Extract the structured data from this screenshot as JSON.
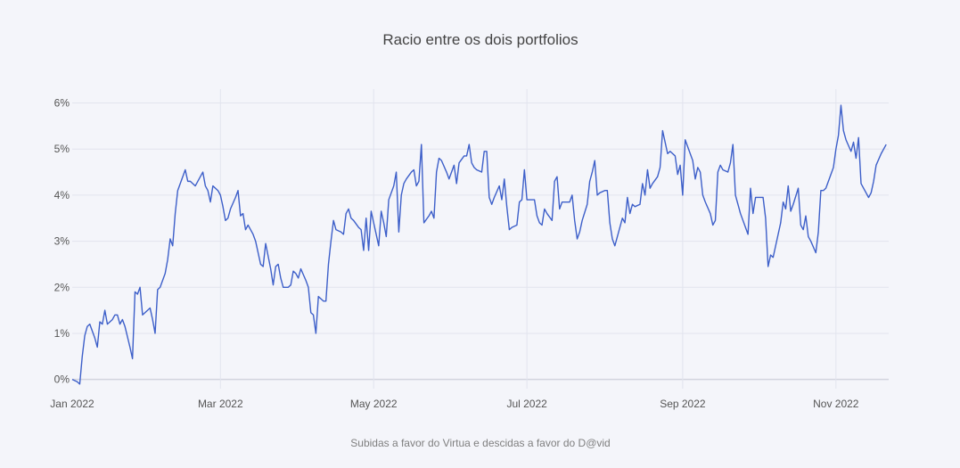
{
  "chart_data": {
    "type": "line",
    "title": "Racio entre os dois portfolios",
    "caption": "Subidas a favor do Virtua e descidas a favor do D@vid",
    "xlabel": "",
    "ylabel": "",
    "x_ticks": [
      {
        "date": "2022-01-01",
        "label": "Jan 2022"
      },
      {
        "date": "2022-03-01",
        "label": "Mar 2022"
      },
      {
        "date": "2022-05-01",
        "label": "May 2022"
      },
      {
        "date": "2022-07-01",
        "label": "Jul 2022"
      },
      {
        "date": "2022-09-01",
        "label": "Sep 2022"
      },
      {
        "date": "2022-11-01",
        "label": "Nov 2022"
      }
    ],
    "y_ticks": [
      {
        "value": 0,
        "label": "0%"
      },
      {
        "value": 1,
        "label": "1%"
      },
      {
        "value": 2,
        "label": "2%"
      },
      {
        "value": 3,
        "label": "3%"
      },
      {
        "value": 4,
        "label": "4%"
      },
      {
        "value": 5,
        "label": "5%"
      },
      {
        "value": 6,
        "label": "6%"
      }
    ],
    "xlim": [
      "2022-01-01",
      "2022-11-22"
    ],
    "ylim": [
      -0.2,
      6.3
    ],
    "grid": true,
    "line_color": "#3d5fc9",
    "series": [
      {
        "name": "",
        "points": [
          [
            "2022-01-01",
            0.0
          ],
          [
            "2022-01-03",
            -0.05
          ],
          [
            "2022-01-04",
            -0.1
          ],
          [
            "2022-01-05",
            0.5
          ],
          [
            "2022-01-06",
            0.95
          ],
          [
            "2022-01-07",
            1.15
          ],
          [
            "2022-01-08",
            1.2
          ],
          [
            "2022-01-10",
            0.9
          ],
          [
            "2022-01-11",
            0.7
          ],
          [
            "2022-01-12",
            1.25
          ],
          [
            "2022-01-13",
            1.2
          ],
          [
            "2022-01-14",
            1.5
          ],
          [
            "2022-01-15",
            1.2
          ],
          [
            "2022-01-17",
            1.3
          ],
          [
            "2022-01-18",
            1.4
          ],
          [
            "2022-01-19",
            1.4
          ],
          [
            "2022-01-20",
            1.2
          ],
          [
            "2022-01-21",
            1.3
          ],
          [
            "2022-01-22",
            1.15
          ],
          [
            "2022-01-24",
            0.7
          ],
          [
            "2022-01-25",
            0.45
          ],
          [
            "2022-01-26",
            1.9
          ],
          [
            "2022-01-27",
            1.85
          ],
          [
            "2022-01-28",
            2.0
          ],
          [
            "2022-01-29",
            1.4
          ],
          [
            "2022-01-31",
            1.5
          ],
          [
            "2022-02-01",
            1.55
          ],
          [
            "2022-02-02",
            1.3
          ],
          [
            "2022-02-03",
            1.0
          ],
          [
            "2022-02-04",
            1.95
          ],
          [
            "2022-02-05",
            2.0
          ],
          [
            "2022-02-07",
            2.3
          ],
          [
            "2022-02-08",
            2.6
          ],
          [
            "2022-02-09",
            3.05
          ],
          [
            "2022-02-10",
            2.9
          ],
          [
            "2022-02-11",
            3.6
          ],
          [
            "2022-02-12",
            4.1
          ],
          [
            "2022-02-14",
            4.4
          ],
          [
            "2022-02-15",
            4.55
          ],
          [
            "2022-02-16",
            4.3
          ],
          [
            "2022-02-17",
            4.3
          ],
          [
            "2022-02-18",
            4.25
          ],
          [
            "2022-02-19",
            4.2
          ],
          [
            "2022-02-21",
            4.4
          ],
          [
            "2022-02-22",
            4.5
          ],
          [
            "2022-02-23",
            4.2
          ],
          [
            "2022-02-24",
            4.1
          ],
          [
            "2022-02-25",
            3.85
          ],
          [
            "2022-02-26",
            4.2
          ],
          [
            "2022-02-28",
            4.1
          ],
          [
            "2022-03-01",
            4.0
          ],
          [
            "2022-03-02",
            3.75
          ],
          [
            "2022-03-03",
            3.45
          ],
          [
            "2022-03-04",
            3.5
          ],
          [
            "2022-03-05",
            3.7
          ],
          [
            "2022-03-07",
            3.95
          ],
          [
            "2022-03-08",
            4.1
          ],
          [
            "2022-03-09",
            3.55
          ],
          [
            "2022-03-10",
            3.6
          ],
          [
            "2022-03-11",
            3.25
          ],
          [
            "2022-03-12",
            3.35
          ],
          [
            "2022-03-14",
            3.15
          ],
          [
            "2022-03-15",
            3.0
          ],
          [
            "2022-03-16",
            2.75
          ],
          [
            "2022-03-17",
            2.5
          ],
          [
            "2022-03-18",
            2.45
          ],
          [
            "2022-03-19",
            2.95
          ],
          [
            "2022-03-21",
            2.4
          ],
          [
            "2022-03-22",
            2.05
          ],
          [
            "2022-03-23",
            2.45
          ],
          [
            "2022-03-24",
            2.5
          ],
          [
            "2022-03-25",
            2.2
          ],
          [
            "2022-03-26",
            2.0
          ],
          [
            "2022-03-28",
            2.0
          ],
          [
            "2022-03-29",
            2.05
          ],
          [
            "2022-03-30",
            2.35
          ],
          [
            "2022-03-31",
            2.3
          ],
          [
            "2022-04-01",
            2.2
          ],
          [
            "2022-04-02",
            2.4
          ],
          [
            "2022-04-04",
            2.15
          ],
          [
            "2022-04-05",
            2.0
          ],
          [
            "2022-04-06",
            1.45
          ],
          [
            "2022-04-07",
            1.4
          ],
          [
            "2022-04-08",
            1.0
          ],
          [
            "2022-04-09",
            1.8
          ],
          [
            "2022-04-11",
            1.7
          ],
          [
            "2022-04-12",
            1.7
          ],
          [
            "2022-04-13",
            2.5
          ],
          [
            "2022-04-14",
            3.0
          ],
          [
            "2022-04-15",
            3.45
          ],
          [
            "2022-04-16",
            3.25
          ],
          [
            "2022-04-18",
            3.2
          ],
          [
            "2022-04-19",
            3.15
          ],
          [
            "2022-04-20",
            3.6
          ],
          [
            "2022-04-21",
            3.7
          ],
          [
            "2022-04-22",
            3.5
          ],
          [
            "2022-04-23",
            3.45
          ],
          [
            "2022-04-25",
            3.3
          ],
          [
            "2022-04-26",
            3.25
          ],
          [
            "2022-04-27",
            2.8
          ],
          [
            "2022-04-28",
            3.5
          ],
          [
            "2022-04-29",
            2.8
          ],
          [
            "2022-04-30",
            3.65
          ],
          [
            "2022-05-02",
            3.15
          ],
          [
            "2022-05-03",
            2.9
          ],
          [
            "2022-05-04",
            3.65
          ],
          [
            "2022-05-05",
            3.4
          ],
          [
            "2022-05-06",
            3.1
          ],
          [
            "2022-05-07",
            3.9
          ],
          [
            "2022-05-09",
            4.2
          ],
          [
            "2022-05-10",
            4.5
          ],
          [
            "2022-05-11",
            3.2
          ],
          [
            "2022-05-12",
            4.0
          ],
          [
            "2022-05-13",
            4.25
          ],
          [
            "2022-05-14",
            4.35
          ],
          [
            "2022-05-16",
            4.5
          ],
          [
            "2022-05-17",
            4.55
          ],
          [
            "2022-05-18",
            4.2
          ],
          [
            "2022-05-19",
            4.3
          ],
          [
            "2022-05-20",
            5.1
          ],
          [
            "2022-05-21",
            3.4
          ],
          [
            "2022-05-23",
            3.55
          ],
          [
            "2022-05-24",
            3.65
          ],
          [
            "2022-05-25",
            3.5
          ],
          [
            "2022-05-26",
            4.5
          ],
          [
            "2022-05-27",
            4.8
          ],
          [
            "2022-05-28",
            4.75
          ],
          [
            "2022-05-30",
            4.5
          ],
          [
            "2022-05-31",
            4.35
          ],
          [
            "2022-06-01",
            4.5
          ],
          [
            "2022-06-02",
            4.65
          ],
          [
            "2022-06-03",
            4.25
          ],
          [
            "2022-06-04",
            4.7
          ],
          [
            "2022-06-06",
            4.85
          ],
          [
            "2022-06-07",
            4.85
          ],
          [
            "2022-06-08",
            5.1
          ],
          [
            "2022-06-09",
            4.7
          ],
          [
            "2022-06-10",
            4.6
          ],
          [
            "2022-06-11",
            4.55
          ],
          [
            "2022-06-13",
            4.5
          ],
          [
            "2022-06-14",
            4.95
          ],
          [
            "2022-06-15",
            4.95
          ],
          [
            "2022-06-16",
            3.95
          ],
          [
            "2022-06-17",
            3.8
          ],
          [
            "2022-06-18",
            3.95
          ],
          [
            "2022-06-20",
            4.2
          ],
          [
            "2022-06-21",
            3.9
          ],
          [
            "2022-06-22",
            4.35
          ],
          [
            "2022-06-23",
            3.75
          ],
          [
            "2022-06-24",
            3.25
          ],
          [
            "2022-06-25",
            3.3
          ],
          [
            "2022-06-27",
            3.35
          ],
          [
            "2022-06-28",
            3.85
          ],
          [
            "2022-06-29",
            3.9
          ],
          [
            "2022-06-30",
            4.55
          ],
          [
            "2022-07-01",
            3.9
          ],
          [
            "2022-07-02",
            3.9
          ],
          [
            "2022-07-04",
            3.9
          ],
          [
            "2022-07-05",
            3.55
          ],
          [
            "2022-07-06",
            3.4
          ],
          [
            "2022-07-07",
            3.35
          ],
          [
            "2022-07-08",
            3.7
          ],
          [
            "2022-07-09",
            3.6
          ],
          [
            "2022-07-11",
            3.45
          ],
          [
            "2022-07-12",
            4.3
          ],
          [
            "2022-07-13",
            4.4
          ],
          [
            "2022-07-14",
            3.7
          ],
          [
            "2022-07-15",
            3.85
          ],
          [
            "2022-07-16",
            3.85
          ],
          [
            "2022-07-18",
            3.85
          ],
          [
            "2022-07-19",
            4.0
          ],
          [
            "2022-07-20",
            3.45
          ],
          [
            "2022-07-21",
            3.05
          ],
          [
            "2022-07-22",
            3.2
          ],
          [
            "2022-07-23",
            3.45
          ],
          [
            "2022-07-25",
            3.8
          ],
          [
            "2022-07-26",
            4.3
          ],
          [
            "2022-07-27",
            4.5
          ],
          [
            "2022-07-28",
            4.75
          ],
          [
            "2022-07-29",
            4.0
          ],
          [
            "2022-07-30",
            4.05
          ],
          [
            "2022-08-01",
            4.1
          ],
          [
            "2022-08-02",
            4.1
          ],
          [
            "2022-08-03",
            3.4
          ],
          [
            "2022-08-04",
            3.05
          ],
          [
            "2022-08-05",
            2.9
          ],
          [
            "2022-08-06",
            3.1
          ],
          [
            "2022-08-08",
            3.5
          ],
          [
            "2022-08-09",
            3.4
          ],
          [
            "2022-08-10",
            3.95
          ],
          [
            "2022-08-11",
            3.6
          ],
          [
            "2022-08-12",
            3.8
          ],
          [
            "2022-08-13",
            3.75
          ],
          [
            "2022-08-15",
            3.8
          ],
          [
            "2022-08-16",
            4.25
          ],
          [
            "2022-08-17",
            4.0
          ],
          [
            "2022-08-18",
            4.55
          ],
          [
            "2022-08-19",
            4.15
          ],
          [
            "2022-08-20",
            4.25
          ],
          [
            "2022-08-22",
            4.4
          ],
          [
            "2022-08-23",
            4.6
          ],
          [
            "2022-08-24",
            5.4
          ],
          [
            "2022-08-25",
            5.15
          ],
          [
            "2022-08-26",
            4.9
          ],
          [
            "2022-08-27",
            4.95
          ],
          [
            "2022-08-29",
            4.85
          ],
          [
            "2022-08-30",
            4.45
          ],
          [
            "2022-08-31",
            4.65
          ],
          [
            "2022-09-01",
            4.0
          ],
          [
            "2022-09-02",
            5.2
          ],
          [
            "2022-09-03",
            5.05
          ],
          [
            "2022-09-05",
            4.75
          ],
          [
            "2022-09-06",
            4.35
          ],
          [
            "2022-09-07",
            4.6
          ],
          [
            "2022-09-08",
            4.5
          ],
          [
            "2022-09-09",
            4.0
          ],
          [
            "2022-09-10",
            3.85
          ],
          [
            "2022-09-12",
            3.6
          ],
          [
            "2022-09-13",
            3.35
          ],
          [
            "2022-09-14",
            3.45
          ],
          [
            "2022-09-15",
            4.5
          ],
          [
            "2022-09-16",
            4.65
          ],
          [
            "2022-09-17",
            4.55
          ],
          [
            "2022-09-19",
            4.5
          ],
          [
            "2022-09-20",
            4.7
          ],
          [
            "2022-09-21",
            5.1
          ],
          [
            "2022-09-22",
            4.0
          ],
          [
            "2022-09-23",
            3.8
          ],
          [
            "2022-09-24",
            3.6
          ],
          [
            "2022-09-26",
            3.3
          ],
          [
            "2022-09-27",
            3.15
          ],
          [
            "2022-09-28",
            4.15
          ],
          [
            "2022-09-29",
            3.6
          ],
          [
            "2022-09-30",
            3.95
          ],
          [
            "2022-10-01",
            3.95
          ],
          [
            "2022-10-03",
            3.95
          ],
          [
            "2022-10-04",
            3.5
          ],
          [
            "2022-10-05",
            2.45
          ],
          [
            "2022-10-06",
            2.7
          ],
          [
            "2022-10-07",
            2.65
          ],
          [
            "2022-10-08",
            2.9
          ],
          [
            "2022-10-10",
            3.4
          ],
          [
            "2022-10-11",
            3.85
          ],
          [
            "2022-10-12",
            3.7
          ],
          [
            "2022-10-13",
            4.2
          ],
          [
            "2022-10-14",
            3.65
          ],
          [
            "2022-10-15",
            3.8
          ],
          [
            "2022-10-17",
            4.15
          ],
          [
            "2022-10-18",
            3.35
          ],
          [
            "2022-10-19",
            3.25
          ],
          [
            "2022-10-20",
            3.55
          ],
          [
            "2022-10-21",
            3.1
          ],
          [
            "2022-10-22",
            3.0
          ],
          [
            "2022-10-24",
            2.75
          ],
          [
            "2022-10-25",
            3.2
          ],
          [
            "2022-10-26",
            4.1
          ],
          [
            "2022-10-27",
            4.1
          ],
          [
            "2022-10-28",
            4.15
          ],
          [
            "2022-10-31",
            4.6
          ],
          [
            "2022-11-01",
            5.0
          ],
          [
            "2022-11-02",
            5.3
          ],
          [
            "2022-11-03",
            5.95
          ],
          [
            "2022-11-04",
            5.4
          ],
          [
            "2022-11-05",
            5.2
          ],
          [
            "2022-11-07",
            4.95
          ],
          [
            "2022-11-08",
            5.15
          ],
          [
            "2022-11-09",
            4.8
          ],
          [
            "2022-11-10",
            5.25
          ],
          [
            "2022-11-11",
            4.25
          ],
          [
            "2022-11-14",
            3.95
          ],
          [
            "2022-11-15",
            4.05
          ],
          [
            "2022-11-16",
            4.3
          ],
          [
            "2022-11-17",
            4.65
          ],
          [
            "2022-11-19",
            4.9
          ],
          [
            "2022-11-21",
            5.1
          ]
        ]
      }
    ]
  }
}
